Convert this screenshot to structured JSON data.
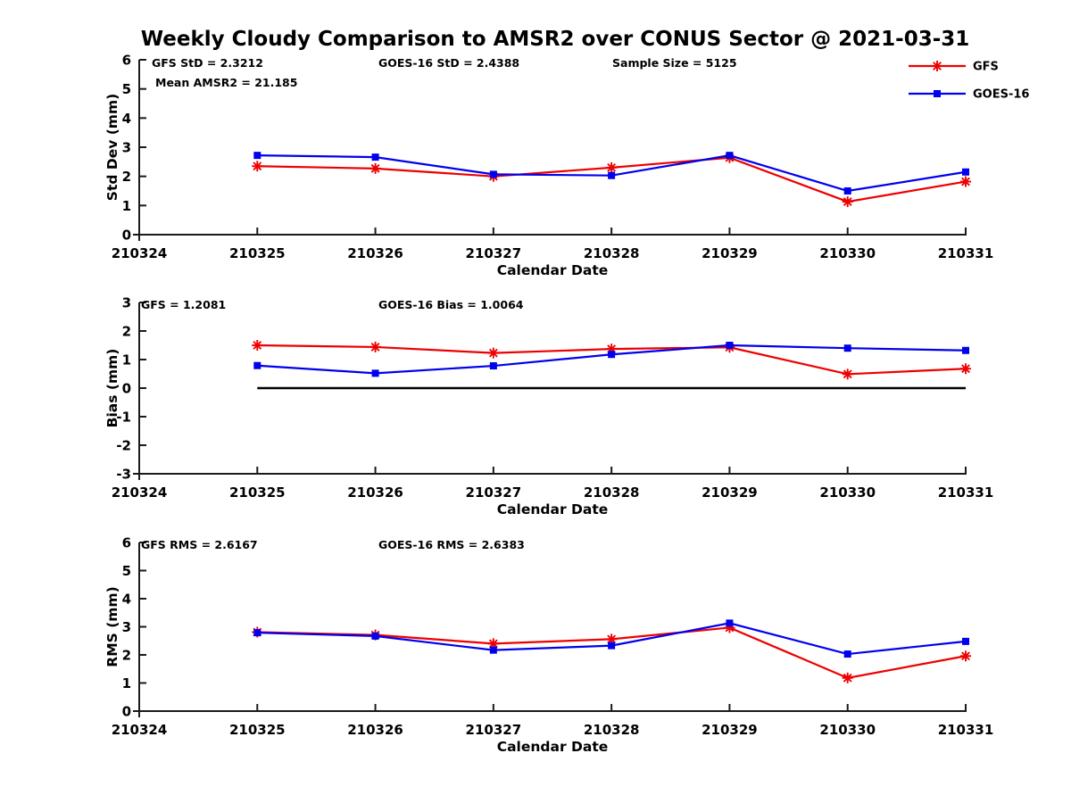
{
  "title": "Weekly Cloudy Comparison to AMSR2 over CONUS Sector @ 2021-03-31",
  "colors": {
    "gfs_red": "#ee0000",
    "goes_blue": "#0000ee",
    "axis_black": "#1a1a1a",
    "zero_line_black": "#000000",
    "background": "#ffffff"
  },
  "legend": {
    "position": "top-right",
    "items": [
      {
        "label": "GFS",
        "color": "#ee0000",
        "marker": "asterisk"
      },
      {
        "label": "GOES-16",
        "color": "#0000ee",
        "marker": "filled-square"
      }
    ]
  },
  "chart_data": [
    {
      "type": "line",
      "panel": "std-dev",
      "xlabel": "Calendar Date",
      "ylabel": "Std Dev (mm)",
      "ylim": [
        0,
        6
      ],
      "yticks": [
        "6",
        "5",
        "4",
        "3",
        "2",
        "1",
        "0"
      ],
      "categories": [
        "210324",
        "210325",
        "210326",
        "210327",
        "210328",
        "210329",
        "210330",
        "210331"
      ],
      "annotations": [
        "GFS StD = 2.3212",
        "GOES-16 StD = 2.4388",
        "Sample Size = 5125",
        "Mean AMSR2 = 21.185"
      ],
      "x": [
        "210325",
        "210326",
        "210327",
        "210328",
        "210329",
        "210330",
        "210331"
      ],
      "zero_line": false,
      "series": [
        {
          "name": "GFS",
          "color": "#ee0000",
          "marker": "asterisk",
          "values": [
            2.35,
            2.27,
            2.0,
            2.3,
            2.64,
            1.13,
            1.82
          ]
        },
        {
          "name": "GOES-16",
          "color": "#0000ee",
          "marker": "filled-square",
          "values": [
            2.72,
            2.66,
            2.07,
            2.03,
            2.72,
            1.5,
            2.15
          ]
        }
      ]
    },
    {
      "type": "line",
      "panel": "bias",
      "xlabel": "Calendar Date",
      "ylabel": "Bias (mm)",
      "ylim": [
        -3,
        3
      ],
      "yticks": [
        "3",
        "2",
        "1",
        "0",
        "-1",
        "-2",
        "-3"
      ],
      "categories": [
        "210324",
        "210325",
        "210326",
        "210327",
        "210328",
        "210329",
        "210330",
        "210331"
      ],
      "annotations": [
        "GFS = 1.2081",
        "GOES-16 Bias  = 1.0064"
      ],
      "x": [
        "210325",
        "210326",
        "210327",
        "210328",
        "210329",
        "210330",
        "210331"
      ],
      "zero_line": true,
      "series": [
        {
          "name": "GFS",
          "color": "#ee0000",
          "marker": "asterisk",
          "values": [
            1.5,
            1.44,
            1.23,
            1.37,
            1.43,
            0.49,
            0.68
          ]
        },
        {
          "name": "GOES-16",
          "color": "#0000ee",
          "marker": "filled-square",
          "values": [
            0.79,
            0.52,
            0.78,
            1.18,
            1.5,
            1.4,
            1.32
          ]
        }
      ]
    },
    {
      "type": "line",
      "panel": "rms",
      "xlabel": "Calendar Date",
      "ylabel": "RMS (mm)",
      "ylim": [
        0,
        6
      ],
      "yticks": [
        "6",
        "5",
        "4",
        "3",
        "2",
        "1",
        "0"
      ],
      "categories": [
        "210324",
        "210325",
        "210326",
        "210327",
        "210328",
        "210329",
        "210330",
        "210331"
      ],
      "annotations": [
        "GFS RMS = 2.6167",
        "GOES-16 RMS = 2.6383"
      ],
      "x": [
        "210325",
        "210326",
        "210327",
        "210328",
        "210329",
        "210330",
        "210331"
      ],
      "zero_line": false,
      "series": [
        {
          "name": "GFS",
          "color": "#ee0000",
          "marker": "asterisk",
          "values": [
            2.81,
            2.71,
            2.4,
            2.56,
            2.97,
            1.18,
            1.96
          ]
        },
        {
          "name": "GOES-16",
          "color": "#0000ee",
          "marker": "filled-square",
          "values": [
            2.79,
            2.67,
            2.17,
            2.33,
            3.13,
            2.03,
            2.48
          ]
        }
      ]
    }
  ]
}
